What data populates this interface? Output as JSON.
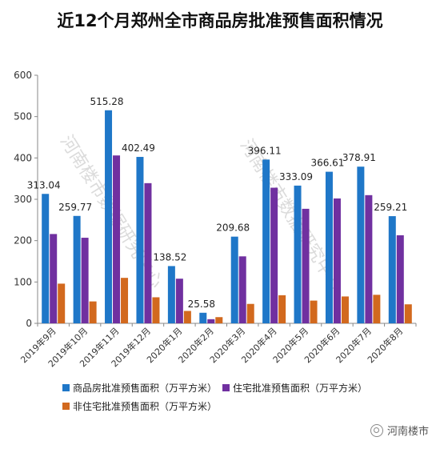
{
  "chart_data": {
    "type": "bar",
    "title": "近12个月郑州全市商品房批准预售面积情况",
    "categories": [
      "2019年9月",
      "2019年10月",
      "2019年11月",
      "2019年12月",
      "2020年1月",
      "2020年2月",
      "2020年3月",
      "2020年4月",
      "2020年5月",
      "2020年6月",
      "2020年7月",
      "2020年8月"
    ],
    "ylim": [
      0,
      600
    ],
    "yticks": [
      0,
      100,
      200,
      300,
      400,
      500,
      600
    ],
    "grid": false,
    "legend_position": "bottom",
    "series": [
      {
        "name": "商品房批准预售面积（万平方米）",
        "color": "#1f77c8",
        "values": [
          313.04,
          259.77,
          515.28,
          402.49,
          138.52,
          25.58,
          209.68,
          396.11,
          333.09,
          366.61,
          378.91,
          259.21
        ],
        "labels": [
          "313.04",
          "259.77",
          "515.28",
          "402.49",
          "138.52",
          "25.58",
          "209.68",
          "396.11",
          "333.09",
          "366.61",
          "378.91",
          "259.21"
        ]
      },
      {
        "name": "住宅批准预售面积（万平方米）",
        "color": "#7030a0",
        "values": [
          216,
          207,
          406,
          339,
          108,
          10,
          162,
          328,
          277,
          302,
          310,
          213
        ]
      },
      {
        "name": "非住宅批准预售面积（万平方米）",
        "color": "#d2691e",
        "values": [
          96,
          53,
          110,
          63,
          30,
          15,
          47,
          68,
          55,
          65,
          69,
          46
        ]
      }
    ]
  },
  "watermarks": [
    "河南楼市数据研究中心",
    "河南楼市数据研究中心"
  ],
  "logo": {
    "text": "河南楼市",
    "icon": "wechat-icon"
  }
}
